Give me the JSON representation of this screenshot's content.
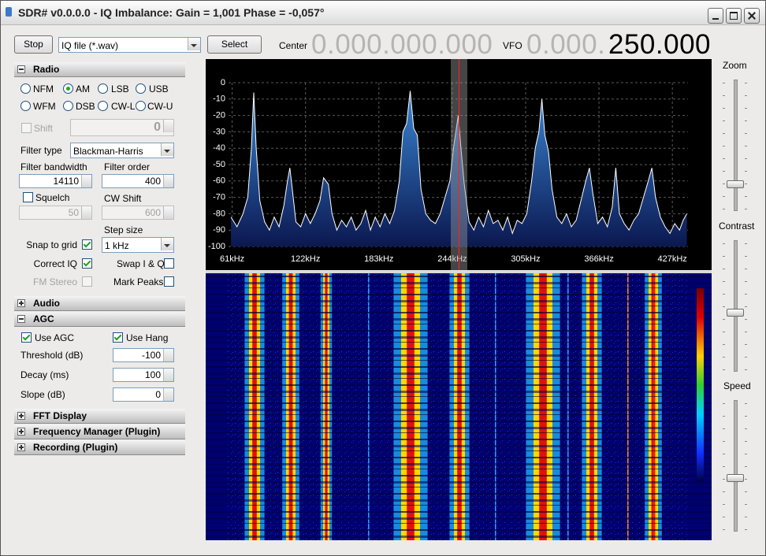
{
  "window": {
    "title": "SDR# v0.0.0.0 - IQ Imbalance: Gain = 1,001 Phase = -0,057°"
  },
  "toolbar": {
    "stop": "Stop",
    "source": "IQ file (*.wav)",
    "select": "Select",
    "center_label": "Center",
    "center_frequency": "0.000.000.000",
    "vfo_label": "VFO",
    "vfo_prefix": "0.000.",
    "vfo_frequency": "250.000"
  },
  "radio_panel": {
    "header": "Radio",
    "modes": [
      {
        "label": "NFM",
        "checked": false
      },
      {
        "label": "AM",
        "checked": true
      },
      {
        "label": "LSB",
        "checked": false
      },
      {
        "label": "USB",
        "checked": false
      },
      {
        "label": "WFM",
        "checked": false
      },
      {
        "label": "DSB",
        "checked": false
      },
      {
        "label": "CW-L",
        "checked": false
      },
      {
        "label": "CW-U",
        "checked": false
      }
    ],
    "shift": {
      "label": "Shift",
      "checked": false,
      "value": "0"
    },
    "filter_type": {
      "label": "Filter type",
      "value": "Blackman-Harris"
    },
    "filter_bandwidth": {
      "label": "Filter bandwidth",
      "value": "14110"
    },
    "filter_order": {
      "label": "Filter order",
      "value": "400"
    },
    "squelch": {
      "label": "Squelch",
      "checked": false,
      "value": "50"
    },
    "cw_shift": {
      "label": "CW Shift",
      "value": "600"
    },
    "step_size": {
      "label": "Step size",
      "value": "1 kHz"
    },
    "snap_to_grid": {
      "label": "Snap to grid",
      "checked": true
    },
    "correct_iq": {
      "label": "Correct IQ",
      "checked": true
    },
    "swap_iq": {
      "label": "Swap I & Q",
      "checked": false
    },
    "fm_stereo": {
      "label": "FM Stereo",
      "checked": false
    },
    "mark_peaks": {
      "label": "Mark Peaks",
      "checked": false
    }
  },
  "audio_panel": {
    "header": "Audio"
  },
  "agc_panel": {
    "header": "AGC",
    "use_agc": {
      "label": "Use AGC",
      "checked": true
    },
    "use_hang": {
      "label": "Use Hang",
      "checked": true
    },
    "threshold": {
      "label": "Threshold (dB)",
      "value": "-100"
    },
    "decay": {
      "label": "Decay (ms)",
      "value": "100"
    },
    "slope": {
      "label": "Slope (dB)",
      "value": "0"
    }
  },
  "collapsed_panels": [
    "FFT Display",
    "Frequency Manager (Plugin)",
    "Recording (Plugin)"
  ],
  "spectrum": {
    "type": "line",
    "color": "#ffffff",
    "area_color": "#3a86d4",
    "grid": true,
    "x": [
      60,
      65,
      70,
      74,
      77,
      79,
      81,
      84,
      88,
      92,
      96,
      100,
      104,
      107,
      109,
      111,
      114,
      118,
      122,
      126,
      130,
      134,
      137,
      139,
      141,
      144,
      148,
      152,
      156,
      160,
      164,
      168,
      172,
      176,
      180,
      184,
      188,
      192,
      196,
      200,
      203,
      206,
      209,
      212,
      215,
      218,
      222,
      226,
      230,
      234,
      238,
      242,
      245,
      247,
      249,
      251,
      254,
      258,
      262,
      266,
      270,
      274,
      278,
      282,
      286,
      290,
      294,
      298,
      302,
      306,
      310,
      313,
      316,
      318.5,
      321,
      324,
      327,
      331,
      335,
      339,
      343,
      347,
      351,
      355,
      358,
      361,
      365,
      369,
      373,
      377,
      380,
      383,
      387,
      391,
      395,
      399,
      403,
      407,
      410,
      413,
      417,
      421,
      425,
      429,
      433,
      436,
      439
    ],
    "values": [
      -82,
      -88,
      -80,
      -70,
      -40,
      -6,
      -40,
      -72,
      -85,
      -90,
      -82,
      -88,
      -75,
      -60,
      -52,
      -65,
      -85,
      -88,
      -80,
      -86,
      -80,
      -72,
      -58,
      -60,
      -62,
      -80,
      -90,
      -84,
      -88,
      -82,
      -90,
      -86,
      -78,
      -90,
      -82,
      -88,
      -80,
      -86,
      -78,
      -60,
      -30,
      -25,
      -5,
      -28,
      -32,
      -65,
      -80,
      -84,
      -86,
      -80,
      -70,
      -60,
      -40,
      -30,
      -20,
      -38,
      -62,
      -85,
      -90,
      -82,
      -88,
      -78,
      -86,
      -84,
      -90,
      -82,
      -92,
      -84,
      -86,
      -80,
      -60,
      -40,
      -30,
      -10,
      -32,
      -42,
      -65,
      -82,
      -86,
      -80,
      -88,
      -84,
      -72,
      -60,
      -52,
      -68,
      -86,
      -82,
      -88,
      -76,
      -52,
      -80,
      -86,
      -90,
      -84,
      -80,
      -70,
      -60,
      -52,
      -70,
      -82,
      -88,
      -92,
      -86,
      -90,
      -84,
      -80
    ],
    "xlim": [
      58,
      440
    ],
    "ylim": [
      -100,
      0
    ],
    "yticks": [
      0,
      -10,
      -20,
      -30,
      -40,
      -50,
      -60,
      -70,
      -80,
      -90,
      -100
    ],
    "xticks": [
      {
        "value": 61,
        "label": "61kHz"
      },
      {
        "value": 122,
        "label": "122kHz"
      },
      {
        "value": 183,
        "label": "183kHz"
      },
      {
        "value": 244,
        "label": "244kHz"
      },
      {
        "value": 305,
        "label": "305kHz"
      },
      {
        "value": 366,
        "label": "366kHz"
      },
      {
        "value": 427,
        "label": "427kHz"
      }
    ]
  },
  "sliders": {
    "zoom": "Zoom",
    "contrast": "Contrast",
    "speed": "Speed"
  }
}
